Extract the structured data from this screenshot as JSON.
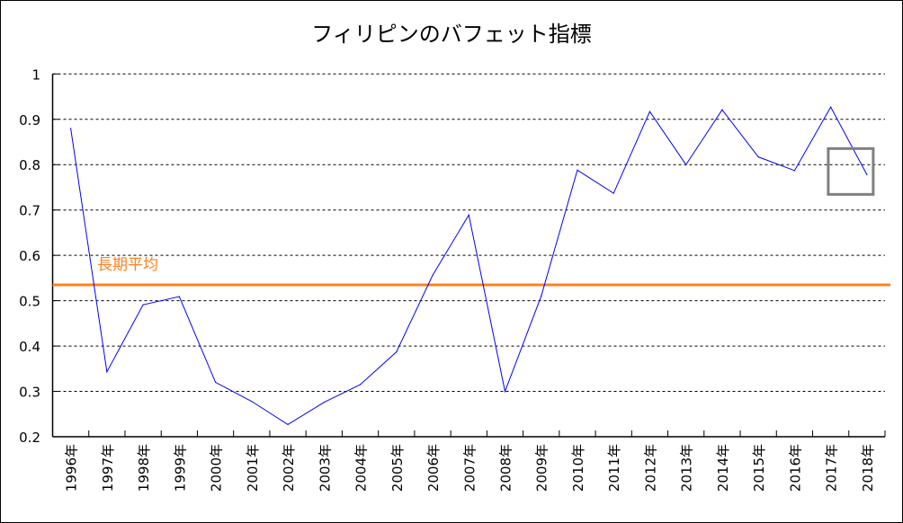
{
  "chart_data": {
    "type": "line",
    "title": "フィリピンのバフェット指標",
    "categories": [
      "1996年",
      "1997年",
      "1998年",
      "1999年",
      "2000年",
      "2001年",
      "2002年",
      "2003年",
      "2004年",
      "2005年",
      "2006年",
      "2007年",
      "2008年",
      "2009年",
      "2010年",
      "2011年",
      "2012年",
      "2013年",
      "2014年",
      "2015年",
      "2016年",
      "2017年",
      "2018年"
    ],
    "series": [
      {
        "color": "#0000FF",
        "values": [
          0.88,
          0.343,
          0.491,
          0.509,
          0.32,
          0.278,
          0.227,
          0.276,
          0.315,
          0.387,
          0.556,
          0.689,
          0.3,
          0.51,
          0.788,
          0.737,
          0.917,
          0.8,
          0.921,
          0.817,
          0.787,
          0.927,
          0.778
        ]
      }
    ],
    "reference_line": {
      "label": "長期平均",
      "value": 0.535,
      "color": "#FF8020"
    },
    "highlight": {
      "category": "2018年",
      "color": "#808080"
    },
    "ylim": [
      0.2,
      1.0
    ],
    "yticks": [
      0.2,
      0.3,
      0.4,
      0.5,
      0.6,
      0.7,
      0.8,
      0.9,
      1
    ],
    "ytick_labels": [
      "0.2",
      "0.3",
      "0.4",
      "0.5",
      "0.6",
      "0.7",
      "0.8",
      "0.9",
      "1"
    ],
    "grid": "horizontal dashed",
    "xlabel": "",
    "ylabel": ""
  }
}
